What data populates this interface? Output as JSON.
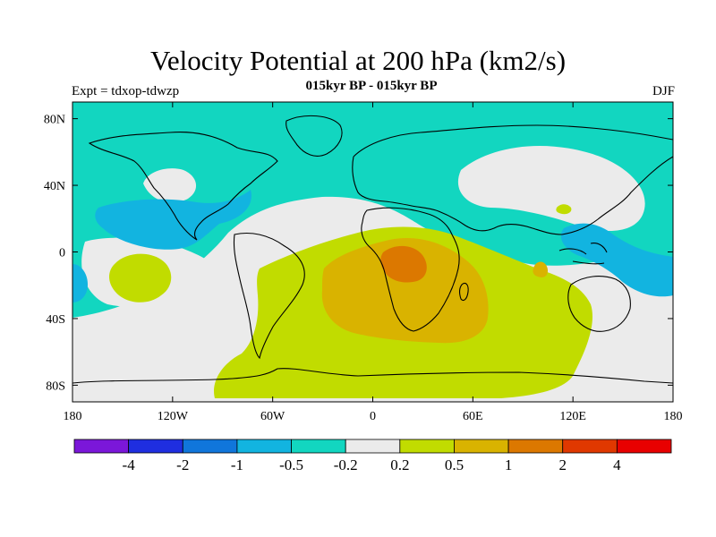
{
  "header": {
    "title": "Velocity Potential at 200 hPa (km2/s)",
    "subtitle": "015kyr BP - 015kyr BP",
    "left_label": "Expt = tdxop-tdwzp",
    "right_label": "DJF"
  },
  "axes": {
    "lon_ticks": [
      "180",
      "120W",
      "60W",
      "0",
      "60E",
      "120E",
      "180"
    ],
    "lat_ticks": [
      "80N",
      "40N",
      "0",
      "40S",
      "80S"
    ]
  },
  "colorbar": {
    "colors": [
      "#7b17d9",
      "#1f2ee0",
      "#1076db",
      "#12b4e0",
      "#12d6c0",
      "#ebebeb",
      "#c1dc00",
      "#d9b300",
      "#dc7800",
      "#e03800",
      "#e80000"
    ],
    "labels": [
      "-4",
      "-2",
      "-1",
      "-0.5",
      "-0.2",
      "0.2",
      "0.5",
      "1",
      "2",
      "4"
    ]
  },
  "map_colors": {
    "neg_weak": "#12d6c0",
    "neg_mid": "#12b4e0",
    "neutral": "#ebebeb",
    "pos_weak": "#c1dc00",
    "pos_mid": "#d9b300",
    "pos_strong": "#dc7800"
  }
}
